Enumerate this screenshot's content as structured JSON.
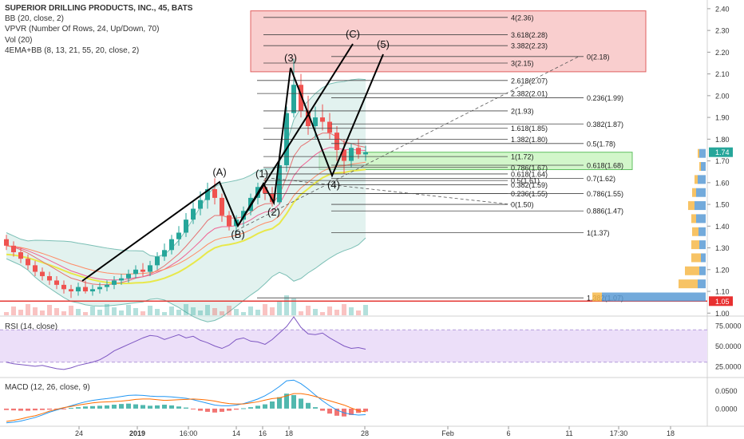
{
  "legend": {
    "title": "SUPERIOR DRILLING PRODUCTS, INC., 45, BATS",
    "indicators": [
      "BB (20, close, 2)",
      "VPVR (Number Of Rows, 24, Up/Down, 70)",
      "Vol (20)",
      "4EMA+BB (8, 13, 21, 55, 20, close, 2)"
    ]
  },
  "colors": {
    "up": "#26a69a",
    "down": "#ef5350",
    "bb_fill": "#cfe9e4",
    "bb_line": "#7bbfb5",
    "ema_yellow": "#e8e84a",
    "fib_line": "#444444",
    "box_red": "#f8c9c9",
    "box_green": "#cdf5c4",
    "rsi_fill": "#ecdff9",
    "rsi_line": "#7e57c2",
    "macd_blue": "#2196f3",
    "macd_orange": "#ff6d00",
    "price_badge": "#e83030",
    "current_badge": "#26a69a",
    "vp_blue": "#5b9bd5",
    "vp_orange": "#f6b94a"
  },
  "chart_data": [
    {
      "type": "candlestick",
      "symbol": "SUPERIOR DRILLING PRODUCTS, INC.",
      "interval": "45",
      "x_ticks": [
        "24",
        "2019",
        "16:00",
        "14",
        "16",
        "18",
        "28",
        "Feb",
        "6",
        "11",
        "17:30",
        "18"
      ],
      "y_ticks": [
        "2.40",
        "2.30",
        "2.20",
        "2.10",
        "2.00",
        "1.90",
        "1.80",
        "1.70",
        "1.60",
        "1.50",
        "1.40",
        "1.30",
        "1.20",
        "1.10",
        "1.00"
      ],
      "ylim": [
        0.99,
        2.44
      ],
      "current_price": "1.74",
      "price_line": "1.05",
      "candles": [
        [
          1.34,
          1.36,
          1.29,
          1.31
        ],
        [
          1.31,
          1.33,
          1.26,
          1.28
        ],
        [
          1.28,
          1.3,
          1.23,
          1.25
        ],
        [
          1.25,
          1.27,
          1.2,
          1.22
        ],
        [
          1.22,
          1.24,
          1.17,
          1.19
        ],
        [
          1.19,
          1.21,
          1.15,
          1.17
        ],
        [
          1.17,
          1.19,
          1.13,
          1.15
        ],
        [
          1.15,
          1.17,
          1.11,
          1.13
        ],
        [
          1.13,
          1.15,
          1.09,
          1.11
        ],
        [
          1.11,
          1.13,
          1.07,
          1.1
        ],
        [
          1.1,
          1.14,
          1.08,
          1.12
        ],
        [
          1.12,
          1.15,
          1.09,
          1.1
        ],
        [
          1.1,
          1.13,
          1.08,
          1.11
        ],
        [
          1.11,
          1.14,
          1.09,
          1.12
        ],
        [
          1.12,
          1.15,
          1.1,
          1.13
        ],
        [
          1.13,
          1.17,
          1.11,
          1.15
        ],
        [
          1.15,
          1.18,
          1.13,
          1.16
        ],
        [
          1.16,
          1.2,
          1.14,
          1.18
        ],
        [
          1.18,
          1.22,
          1.16,
          1.2
        ],
        [
          1.2,
          1.23,
          1.17,
          1.19
        ],
        [
          1.19,
          1.24,
          1.17,
          1.22
        ],
        [
          1.22,
          1.28,
          1.2,
          1.26
        ],
        [
          1.26,
          1.32,
          1.24,
          1.29
        ],
        [
          1.29,
          1.36,
          1.27,
          1.34
        ],
        [
          1.34,
          1.4,
          1.31,
          1.37
        ],
        [
          1.37,
          1.46,
          1.35,
          1.43
        ],
        [
          1.43,
          1.51,
          1.41,
          1.48
        ],
        [
          1.48,
          1.56,
          1.45,
          1.52
        ],
        [
          1.52,
          1.6,
          1.48,
          1.57
        ],
        [
          1.57,
          1.62,
          1.5,
          1.53
        ],
        [
          1.53,
          1.55,
          1.42,
          1.45
        ],
        [
          1.45,
          1.47,
          1.38,
          1.4
        ],
        [
          1.4,
          1.45,
          1.37,
          1.43
        ],
        [
          1.43,
          1.49,
          1.4,
          1.47
        ],
        [
          1.47,
          1.55,
          1.45,
          1.53
        ],
        [
          1.53,
          1.6,
          1.5,
          1.58
        ],
        [
          1.58,
          1.62,
          1.52,
          1.55
        ],
        [
          1.55,
          1.58,
          1.49,
          1.51
        ],
        [
          1.51,
          1.7,
          1.5,
          1.68
        ],
        [
          1.68,
          1.95,
          1.65,
          1.92
        ],
        [
          1.92,
          2.17,
          1.9,
          2.05
        ],
        [
          2.05,
          2.1,
          1.9,
          1.93
        ],
        [
          1.93,
          2.0,
          1.82,
          1.86
        ],
        [
          1.86,
          1.95,
          1.8,
          1.9
        ],
        [
          1.9,
          1.96,
          1.84,
          1.88
        ],
        [
          1.88,
          1.92,
          1.8,
          1.83
        ],
        [
          1.83,
          1.86,
          1.7,
          1.75
        ],
        [
          1.75,
          1.8,
          1.64,
          1.7
        ],
        [
          1.7,
          1.78,
          1.67,
          1.76
        ],
        [
          1.76,
          1.8,
          1.71,
          1.73
        ],
        [
          1.73,
          1.77,
          1.7,
          1.74
        ]
      ],
      "wave_points": [
        {
          "label": "(A)",
          "price": 1.61
        },
        {
          "label": "(B)",
          "price": 1.4
        },
        {
          "label": "(1)",
          "price": 1.6
        },
        {
          "label": "(2)",
          "price": 1.5
        },
        {
          "label": "(3)",
          "price": 2.17
        },
        {
          "label": "(4)",
          "price": 1.63
        },
        {
          "label": "(C)",
          "price": 2.29
        },
        {
          "label": "(5)",
          "price": 2.23
        }
      ],
      "fib_levels": [
        {
          "label": "4(2.36)",
          "price": 2.36
        },
        {
          "label": "3.618(2.28)",
          "price": 2.28
        },
        {
          "label": "3.382(2.23)",
          "price": 2.23
        },
        {
          "label": "0(2.18)",
          "price": 2.18
        },
        {
          "label": "3(2.15)",
          "price": 2.15
        },
        {
          "label": "2.618(2.07)",
          "price": 2.07
        },
        {
          "label": "2.382(2.01)",
          "price": 2.01
        },
        {
          "label": "0.236(1.99)",
          "price": 1.99
        },
        {
          "label": "2(1.93)",
          "price": 1.93
        },
        {
          "label": "0.382(1.87)",
          "price": 1.87
        },
        {
          "label": "1.618(1.85)",
          "price": 1.85
        },
        {
          "label": "1.382(1.80)",
          "price": 1.8
        },
        {
          "label": "0.5(1.78)",
          "price": 1.78
        },
        {
          "label": "1(1.72)",
          "price": 1.72
        },
        {
          "label": "0.618(1.68)",
          "price": 1.68
        },
        {
          "label": "0.786(1.67)",
          "price": 1.67
        },
        {
          "label": "0.618(1.64)",
          "price": 1.64
        },
        {
          "label": "0.7(1.62)",
          "price": 1.62
        },
        {
          "label": "0.5(1.61)",
          "price": 1.61
        },
        {
          "label": "0.382(1.59)",
          "price": 1.59
        },
        {
          "label": "0.236(1.55)",
          "price": 1.55
        },
        {
          "label": "0.786(1.55)",
          "price": 1.55
        },
        {
          "label": "0(1.50)",
          "price": 1.5
        },
        {
          "label": "0.886(1.47)",
          "price": 1.47
        },
        {
          "label": "1(1.37)",
          "price": 1.37
        },
        {
          "label": "1.382(1.07)",
          "price": 1.07
        }
      ],
      "volume_profile": [
        {
          "price": 1.74,
          "up": 8,
          "down": 2
        },
        {
          "price": 1.68,
          "up": 6,
          "down": 2
        },
        {
          "price": 1.62,
          "up": 10,
          "down": 4
        },
        {
          "price": 1.56,
          "up": 12,
          "down": 5
        },
        {
          "price": 1.5,
          "up": 14,
          "down": 8
        },
        {
          "price": 1.44,
          "up": 12,
          "down": 6
        },
        {
          "price": 1.38,
          "up": 9,
          "down": 8
        },
        {
          "price": 1.32,
          "up": 8,
          "down": 10
        },
        {
          "price": 1.26,
          "up": 6,
          "down": 12
        },
        {
          "price": 1.2,
          "up": 8,
          "down": 18
        },
        {
          "price": 1.14,
          "up": 10,
          "down": 24
        },
        {
          "price": 1.08,
          "up": 130,
          "down": 12
        }
      ]
    },
    {
      "type": "line",
      "title": "RSI (14, close)",
      "y_ticks": [
        "75.0000",
        "50.0000",
        "25.0000"
      ],
      "ylim": [
        12,
        85
      ],
      "band": [
        30,
        70
      ],
      "values": [
        30,
        28,
        27,
        26,
        25,
        26,
        24,
        22,
        21,
        23,
        26,
        28,
        30,
        33,
        38,
        44,
        48,
        52,
        56,
        60,
        63,
        62,
        58,
        61,
        64,
        60,
        62,
        57,
        54,
        50,
        47,
        51,
        58,
        60,
        56,
        55,
        52,
        58,
        66,
        74,
        86,
        73,
        65,
        64,
        66,
        60,
        55,
        50,
        47,
        48,
        46
      ]
    },
    {
      "type": "bar",
      "title": "MACD (12, 26, close, 9)",
      "y_ticks": [
        "0.0500",
        "0.0000"
      ],
      "ylim": [
        -0.045,
        0.085
      ],
      "histogram": [
        -0.004,
        -0.005,
        -0.006,
        -0.006,
        -0.005,
        -0.004,
        -0.003,
        -0.002,
        -0.001,
        0.002,
        0.004,
        0.006,
        0.007,
        0.008,
        0.009,
        0.011,
        0.013,
        0.014,
        0.012,
        0.01,
        0.008,
        0.009,
        0.011,
        0.009,
        0.006,
        0.003,
        -0.002,
        -0.006,
        -0.009,
        -0.011,
        -0.009,
        -0.006,
        -0.003,
        0.001,
        0.004,
        0.008,
        0.012,
        0.02,
        0.032,
        0.042,
        0.038,
        0.028,
        0.016,
        0.004,
        -0.006,
        -0.014,
        -0.02,
        -0.022,
        -0.018,
        -0.012,
        -0.008
      ],
      "macd_line": [
        -0.04,
        -0.038,
        -0.035,
        -0.03,
        -0.025,
        -0.018,
        -0.01,
        -0.004,
        0.002,
        0.008,
        0.014,
        0.019,
        0.023,
        0.026,
        0.028,
        0.031,
        0.034,
        0.037,
        0.038,
        0.037,
        0.035,
        0.034,
        0.034,
        0.033,
        0.031,
        0.029,
        0.025,
        0.02,
        0.015,
        0.01,
        0.008,
        0.008,
        0.01,
        0.014,
        0.02,
        0.027,
        0.036,
        0.048,
        0.062,
        0.078,
        0.08,
        0.07,
        0.055,
        0.038,
        0.022,
        0.008,
        -0.004,
        -0.012,
        -0.016,
        -0.018,
        -0.017
      ],
      "signal_line": [
        -0.036,
        -0.033,
        -0.029,
        -0.024,
        -0.02,
        -0.014,
        -0.007,
        -0.002,
        0.003,
        0.006,
        0.01,
        0.013,
        0.016,
        0.018,
        0.019,
        0.02,
        0.021,
        0.023,
        0.026,
        0.027,
        0.027,
        0.025,
        0.023,
        0.024,
        0.025,
        0.026,
        0.027,
        0.026,
        0.024,
        0.021,
        0.017,
        0.014,
        0.013,
        0.013,
        0.016,
        0.019,
        0.024,
        0.028,
        0.03,
        0.036,
        0.042,
        0.042,
        0.039,
        0.034,
        0.028,
        0.022,
        0.016,
        0.01,
        0.002,
        -0.006,
        -0.009
      ]
    }
  ],
  "rsi_label": "RSI (14, close)",
  "macd_label": "MACD (12, 26, close, 9)"
}
